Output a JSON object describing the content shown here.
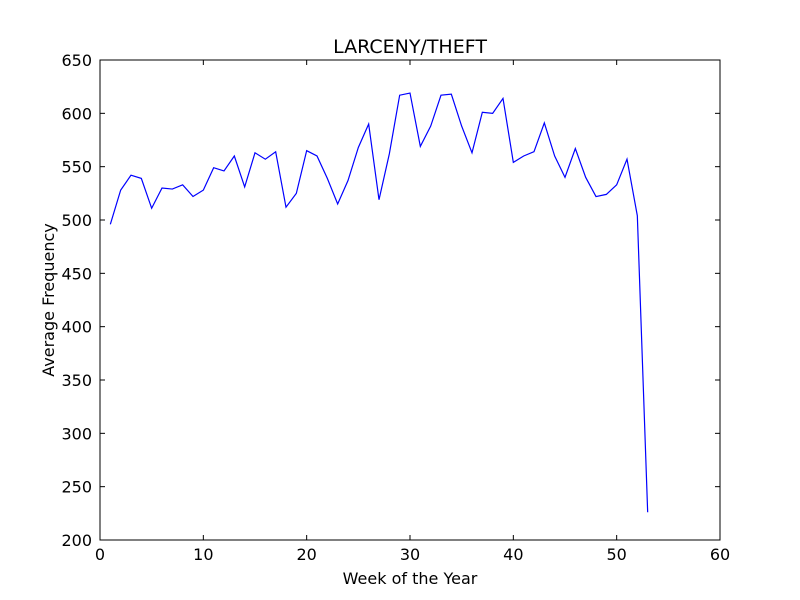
{
  "chart_data": {
    "type": "line",
    "title": "LARCENY/THEFT",
    "xlabel": "Week of the Year",
    "ylabel": "Average Frequency",
    "xlim": [
      0,
      60
    ],
    "ylim": [
      200,
      650
    ],
    "xticks": [
      0,
      10,
      20,
      30,
      40,
      50,
      60
    ],
    "yticks": [
      200,
      250,
      300,
      350,
      400,
      450,
      500,
      550,
      600,
      650
    ],
    "grid": false,
    "legend": "none",
    "line_color": "#0000ff",
    "series": [
      {
        "x": [
          1,
          2,
          3,
          4,
          5,
          6,
          7,
          8,
          9,
          10,
          11,
          12,
          13,
          14,
          15,
          16,
          17,
          18,
          19,
          20,
          21,
          22,
          23,
          24,
          25,
          26,
          27,
          28,
          29,
          30,
          31,
          32,
          33,
          34,
          35,
          36,
          37,
          38,
          39,
          40,
          41,
          42,
          43,
          44,
          45,
          46,
          47,
          48,
          49,
          50,
          51,
          52,
          53
        ],
        "values": [
          496,
          528,
          542,
          539,
          511,
          530,
          529,
          533,
          522,
          528,
          549,
          546,
          560,
          531,
          563,
          557,
          564,
          512,
          525,
          565,
          560,
          539,
          515,
          537,
          568,
          590,
          519,
          562,
          617,
          619,
          569,
          588,
          617,
          618,
          588,
          563,
          601,
          600,
          614,
          554,
          560,
          564,
          591,
          560,
          540,
          567,
          540,
          522,
          524,
          533,
          557,
          504,
          226
        ]
      }
    ]
  }
}
